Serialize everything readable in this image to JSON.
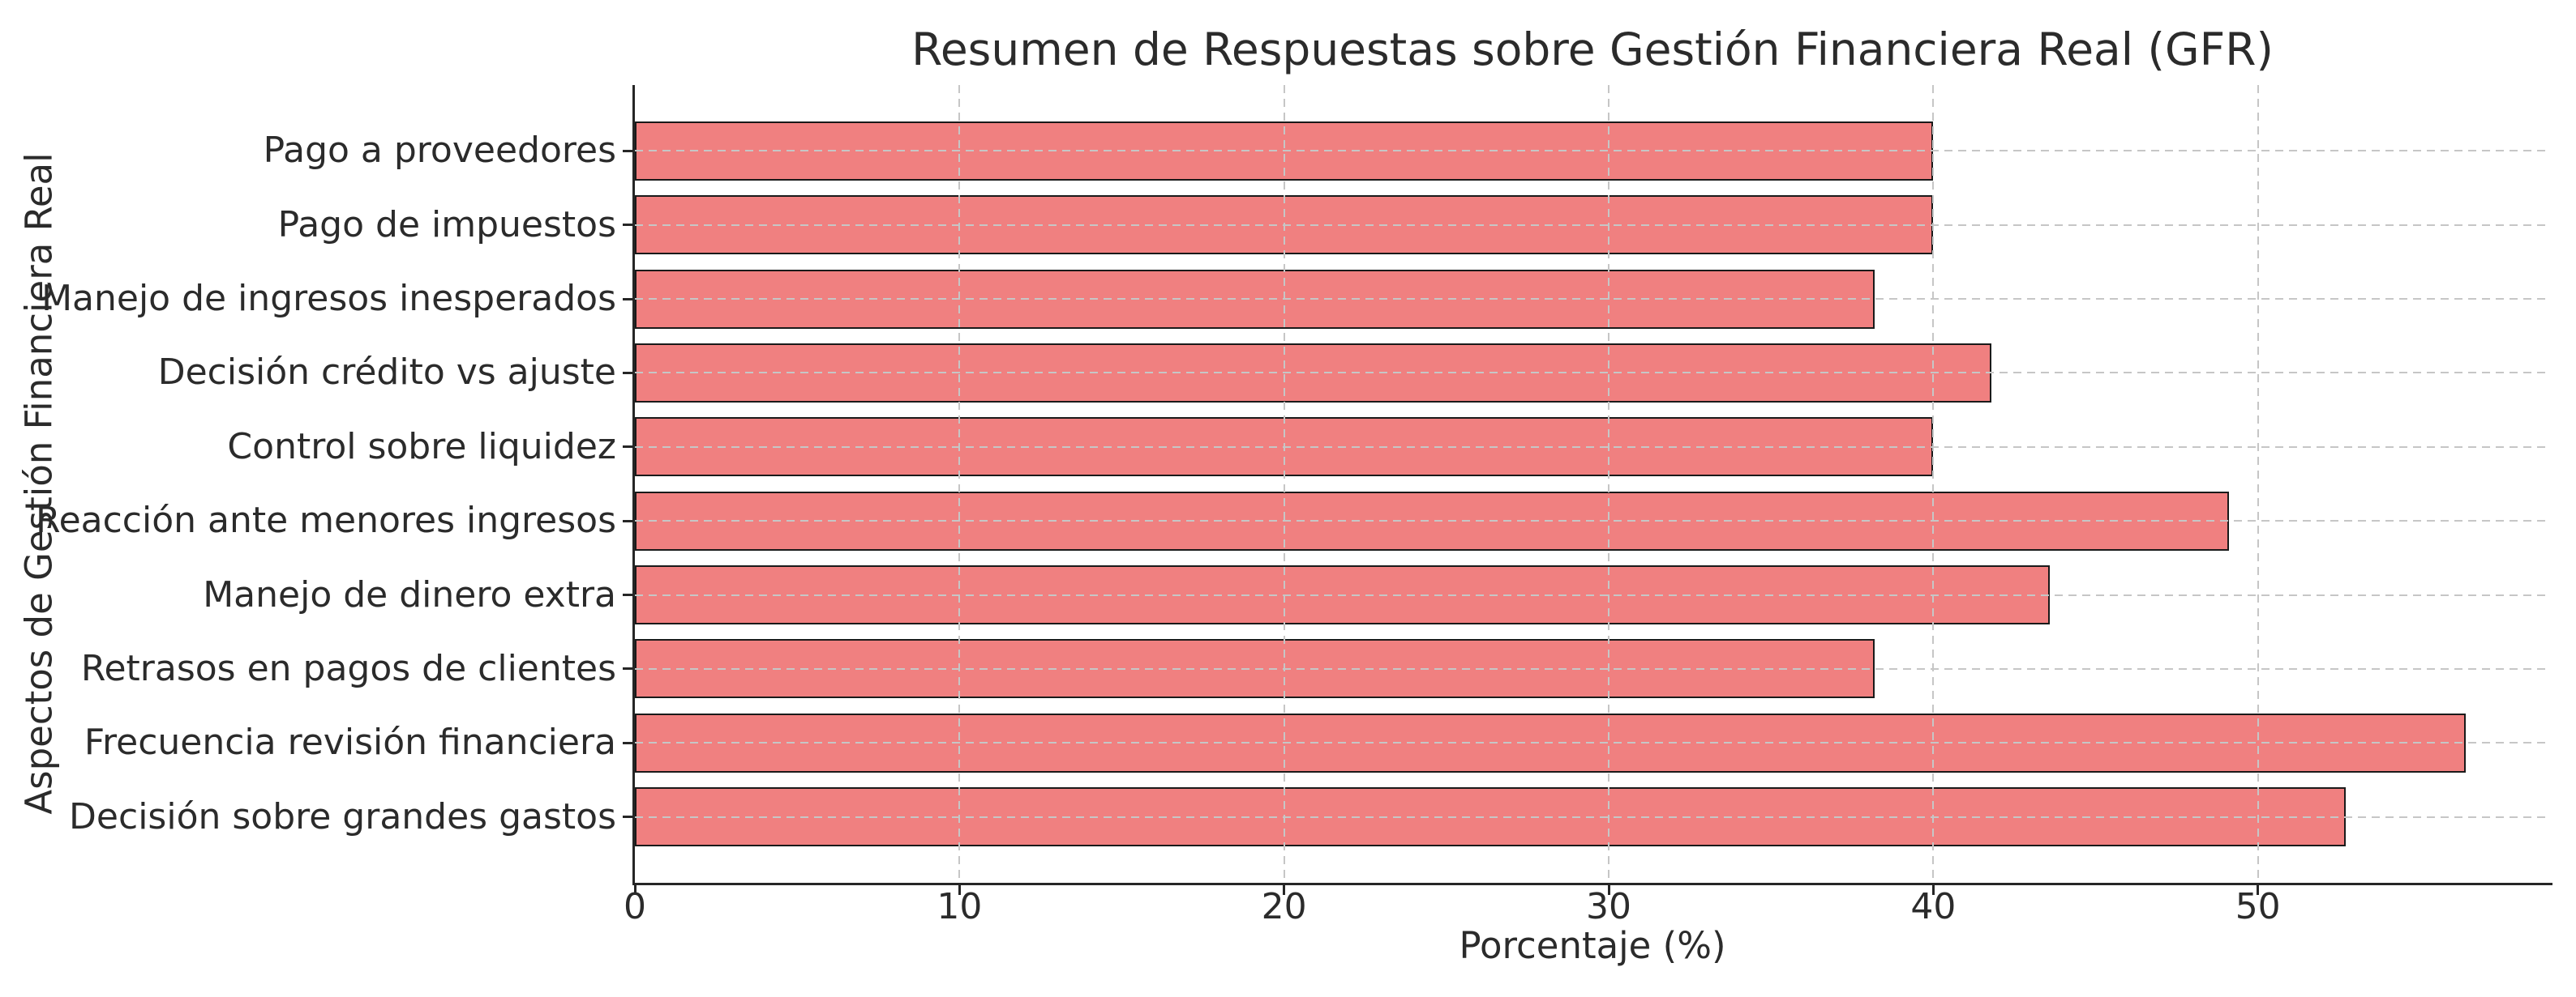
{
  "chart_data": {
    "type": "bar",
    "orientation": "horizontal",
    "title": "Resumen de Respuestas sobre Gestión Financiera Real (GFR)",
    "xlabel": "Porcentaje (%)",
    "ylabel": "Aspectos de Gestión Financiera Real",
    "categories": [
      "Pago a proveedores",
      "Pago de impuestos",
      "Manejo de ingresos inesperados",
      "Decisión crédito vs ajuste",
      "Control sobre liquidez",
      "Reacción ante menores ingresos",
      "Manejo de dinero extra",
      "Retrasos en pagos de clientes",
      "Frecuencia revisión financiera",
      "Decisión sobre grandes gastos"
    ],
    "values": [
      40.0,
      40.0,
      38.2,
      41.8,
      40.0,
      49.1,
      43.6,
      38.2,
      56.4,
      52.7
    ],
    "xticks": [
      0,
      10,
      20,
      30,
      40,
      50
    ],
    "xlim": [
      0,
      59
    ],
    "grid": true,
    "grid_style": "dashed",
    "legend": "none",
    "bar_color": "#f08080",
    "bar_edge_color": "#1a1a1a",
    "grid_color": "#c6c6c6",
    "axis_color": "#262626",
    "text_color": "#2b2b2b",
    "background": "#ffffff"
  }
}
